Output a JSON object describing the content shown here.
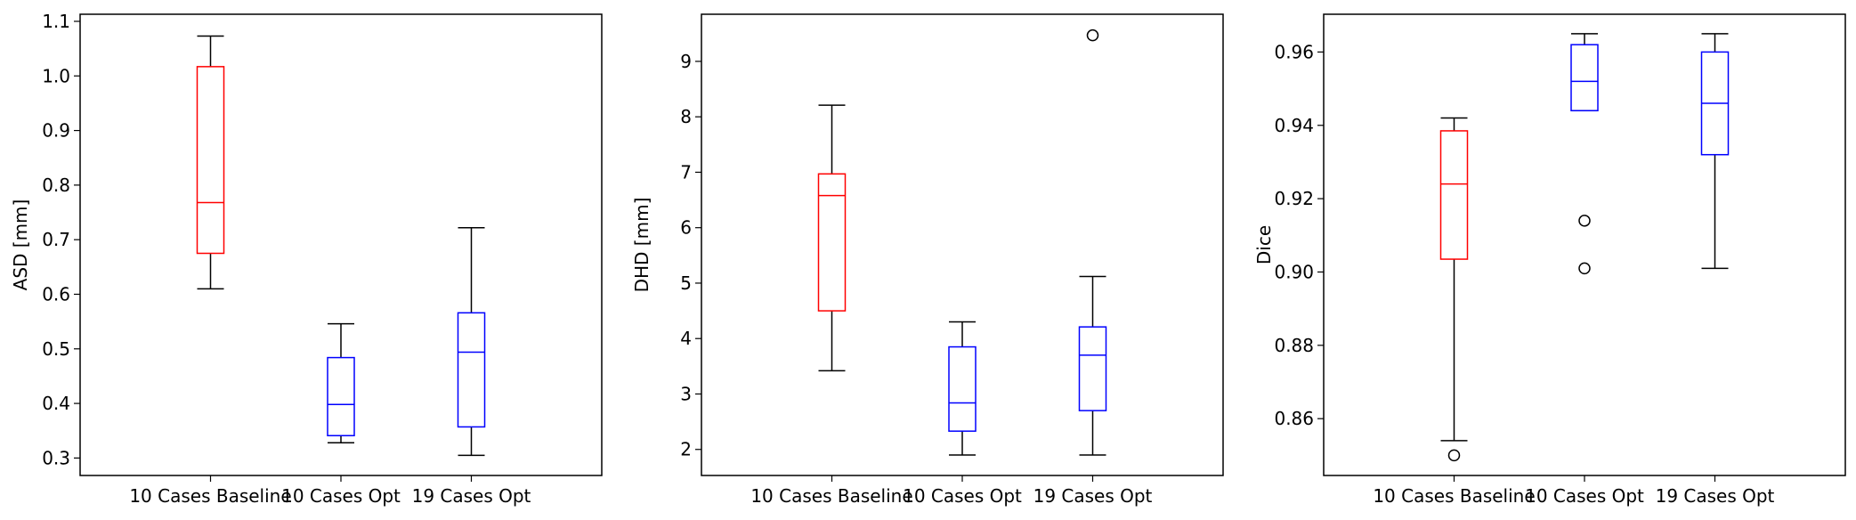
{
  "chart_data": [
    {
      "type": "boxplot",
      "ylabel": "ASD [mm]",
      "categories": [
        "10 Cases Baseline",
        "10 Cases Opt",
        "19 Cases Opt"
      ],
      "ylim": [
        0.268,
        1.113
      ],
      "yticks": [
        0.3,
        0.4,
        0.5,
        0.6,
        0.7,
        0.8,
        0.9,
        1.0,
        1.1
      ],
      "ytick_labels": [
        "0.3",
        "0.4",
        "0.5",
        "0.6",
        "0.7",
        "0.8",
        "0.9",
        "1.0",
        "1.1"
      ],
      "boxes": [
        {
          "category": "10 Cases Baseline",
          "color": "#ff0000",
          "whisker_low": 0.61,
          "q1": 0.675,
          "median": 0.768,
          "q3": 1.017,
          "whisker_high": 1.073,
          "outliers": []
        },
        {
          "category": "10 Cases Opt",
          "color": "#0000ff",
          "whisker_low": 0.328,
          "q1": 0.341,
          "median": 0.398,
          "q3": 0.484,
          "whisker_high": 0.546,
          "outliers": []
        },
        {
          "category": "19 Cases Opt",
          "color": "#0000ff",
          "whisker_low": 0.305,
          "q1": 0.357,
          "median": 0.494,
          "q3": 0.566,
          "whisker_high": 0.722,
          "outliers": []
        }
      ]
    },
    {
      "type": "boxplot",
      "ylabel": "DHD [mm]",
      "categories": [
        "10 Cases Baseline",
        "10 Cases Opt",
        "19 Cases Opt"
      ],
      "ylim": [
        1.53,
        9.85
      ],
      "yticks": [
        2,
        3,
        4,
        5,
        6,
        7,
        8,
        9
      ],
      "ytick_labels": [
        "2",
        "3",
        "4",
        "5",
        "6",
        "7",
        "8",
        "9"
      ],
      "boxes": [
        {
          "category": "10 Cases Baseline",
          "color": "#ff0000",
          "whisker_low": 3.42,
          "q1": 4.5,
          "median": 6.58,
          "q3": 6.97,
          "whisker_high": 8.21,
          "outliers": []
        },
        {
          "category": "10 Cases Opt",
          "color": "#0000ff",
          "whisker_low": 1.9,
          "q1": 2.33,
          "median": 2.84,
          "q3": 3.85,
          "whisker_high": 4.3,
          "outliers": []
        },
        {
          "category": "19 Cases Opt",
          "color": "#0000ff",
          "whisker_low": 1.9,
          "q1": 2.7,
          "median": 3.7,
          "q3": 4.21,
          "whisker_high": 5.12,
          "outliers": [
            9.47
          ]
        }
      ]
    },
    {
      "type": "boxplot",
      "ylabel": "Dice",
      "categories": [
        "10 Cases Baseline",
        "10 Cases Opt",
        "19 Cases Opt"
      ],
      "ylim": [
        0.8445,
        0.9703
      ],
      "yticks": [
        0.86,
        0.88,
        0.9,
        0.92,
        0.94,
        0.96
      ],
      "ytick_labels": [
        "0.86",
        "0.88",
        "0.90",
        "0.92",
        "0.94",
        "0.96"
      ],
      "boxes": [
        {
          "category": "10 Cases Baseline",
          "color": "#ff0000",
          "whisker_low": 0.854,
          "q1": 0.9035,
          "median": 0.924,
          "q3": 0.9385,
          "whisker_high": 0.942,
          "outliers": [
            0.85
          ]
        },
        {
          "category": "10 Cases Opt",
          "color": "#0000ff",
          "whisker_low": 0.944,
          "q1": 0.944,
          "median": 0.952,
          "q3": 0.962,
          "whisker_high": 0.965,
          "outliers": [
            0.914,
            0.901
          ]
        },
        {
          "category": "19 Cases Opt",
          "color": "#0000ff",
          "whisker_low": 0.901,
          "q1": 0.932,
          "median": 0.946,
          "q3": 0.96,
          "whisker_high": 0.965,
          "outliers": []
        }
      ]
    }
  ]
}
